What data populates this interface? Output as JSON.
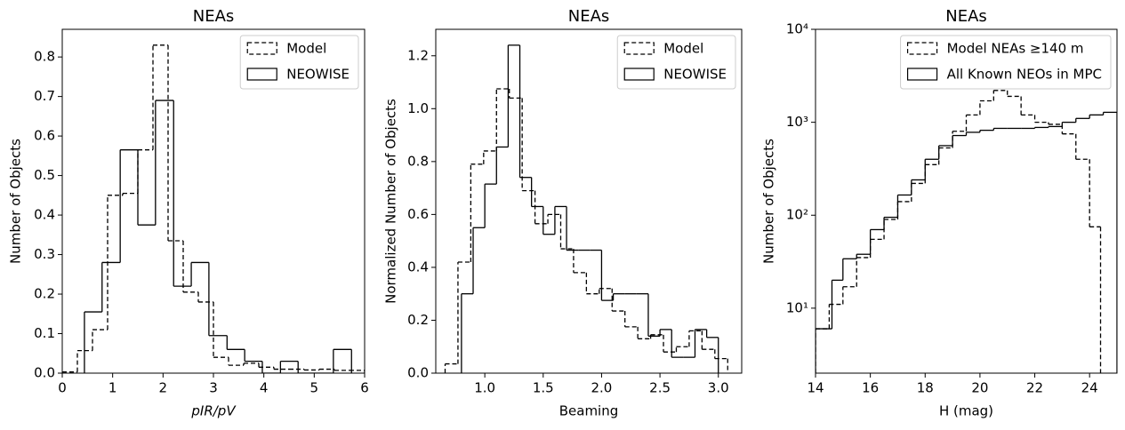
{
  "chart_data": [
    {
      "type": "histogram",
      "title": "NEAs",
      "xlabel": "pIR/pV",
      "ylabel": "Number of Objects",
      "xlim": [
        0,
        6
      ],
      "ylim": [
        0,
        0.87
      ],
      "xticks": [
        0,
        1,
        2,
        3,
        4,
        5,
        6
      ],
      "yticks": [
        {
          "value": 0,
          "label": "0.0"
        },
        0.1,
        0.2,
        0.3,
        0.4,
        0.5,
        0.6,
        0.7,
        0.8
      ],
      "legend": "upper right",
      "series": [
        {
          "name": "Model",
          "style": "dashed",
          "color": "#000000",
          "bins": [
            0,
            0.3,
            0.6,
            0.9,
            1.2,
            1.5,
            1.8,
            2.1,
            2.4,
            2.7,
            3.0,
            3.3,
            3.6,
            3.9,
            4.2,
            4.5,
            4.8,
            5.1,
            5.4,
            5.7,
            6.0
          ],
          "values": [
            0.003,
            0.057,
            0.11,
            0.45,
            0.455,
            0.565,
            0.83,
            0.335,
            0.205,
            0.18,
            0.04,
            0.02,
            0.025,
            0.015,
            0.01,
            0.01,
            0.008,
            0.01,
            0.007,
            0.007
          ]
        },
        {
          "name": "NEOWISE",
          "style": "solid",
          "color": "#000000",
          "bins": [
            0.44,
            0.79,
            1.15,
            1.5,
            1.85,
            2.21,
            2.56,
            2.91,
            3.27,
            3.62,
            3.97,
            4.33,
            4.68,
            5.03,
            5.38,
            5.74
          ],
          "values": [
            0.155,
            0.28,
            0.565,
            0.375,
            0.69,
            0.22,
            0.28,
            0.095,
            0.06,
            0.03,
            0,
            0.03,
            0,
            0,
            0.06
          ]
        }
      ]
    },
    {
      "type": "histogram",
      "title": "NEAs",
      "xlabel": "Beaming",
      "ylabel": "Normalized Number of Objects",
      "xlim": [
        0.58,
        3.2
      ],
      "ylim": [
        0,
        1.3
      ],
      "xticks": [
        {
          "value": 1,
          "label": "1.0"
        },
        1.5,
        {
          "value": 2,
          "label": "2.0"
        },
        2.5,
        {
          "value": 3,
          "label": "3.0"
        }
      ],
      "yticks": [
        {
          "value": 0,
          "label": "0.0"
        },
        0.2,
        0.4,
        0.6,
        0.8,
        {
          "value": 1,
          "label": "1.0"
        },
        1.2
      ],
      "legend": "upper right",
      "series": [
        {
          "name": "Model",
          "style": "dashed",
          "color": "#000000",
          "bins": [
            0.66,
            0.77,
            0.88,
            0.99,
            1.1,
            1.21,
            1.32,
            1.43,
            1.54,
            1.65,
            1.76,
            1.87,
            1.98,
            2.09,
            2.2,
            2.31,
            2.42,
            2.53,
            2.64,
            2.75,
            2.86,
            2.97,
            3.08
          ],
          "values": [
            0.035,
            0.42,
            0.79,
            0.84,
            1.075,
            1.04,
            0.69,
            0.565,
            0.6,
            0.47,
            0.38,
            0.3,
            0.32,
            0.235,
            0.175,
            0.13,
            0.145,
            0.08,
            0.1,
            0.16,
            0.09,
            0.055
          ]
        },
        {
          "name": "NEOWISE",
          "style": "solid",
          "color": "#000000",
          "bins": [
            0.8,
            0.9,
            1.0,
            1.1,
            1.2,
            1.3,
            1.4,
            1.5,
            1.6,
            1.7,
            1.8,
            1.9,
            2.0,
            2.1,
            2.2,
            2.3,
            2.4,
            2.5,
            2.6,
            2.7,
            2.8,
            2.9,
            3.0
          ],
          "values": [
            0.3,
            0.55,
            0.715,
            0.855,
            1.24,
            0.74,
            0.63,
            0.525,
            0.63,
            0.465,
            0.465,
            0.465,
            0.275,
            0.3,
            0.3,
            0.3,
            0.14,
            0.165,
            0.06,
            0.06,
            0.165,
            0.135
          ]
        }
      ]
    },
    {
      "type": "histogram",
      "title": "NEAs",
      "xlabel": "H (mag)",
      "ylabel": "Number of Objects",
      "xlim": [
        14,
        25
      ],
      "ylim": [
        2,
        10000
      ],
      "log_y": true,
      "xticks": [
        14,
        16,
        18,
        20,
        22,
        24
      ],
      "yticks": [
        {
          "value": 10,
          "label": "10¹"
        },
        {
          "value": 100,
          "label": "10²"
        },
        {
          "value": 1000,
          "label": "10³"
        },
        {
          "value": 10000,
          "label": "10⁴"
        }
      ],
      "legend": "upper right",
      "series": [
        {
          "name": "Model NEAs ≥140 m",
          "style": "dashed",
          "color": "#000000",
          "bins": [
            14,
            14.5,
            15,
            15.5,
            16,
            16.5,
            17,
            17.5,
            18,
            18.5,
            19,
            19.5,
            20,
            20.5,
            21,
            21.5,
            22,
            22.5,
            23,
            23.5,
            24,
            24.4
          ],
          "values": [
            6,
            11,
            17,
            35,
            55,
            90,
            140,
            220,
            350,
            530,
            800,
            1200,
            1700,
            2200,
            1900,
            1200,
            1000,
            950,
            750,
            400,
            75
          ]
        },
        {
          "name": "All Known NEOs in MPC",
          "style": "solid",
          "color": "#000000",
          "bins": [
            14,
            14.6,
            15,
            15.5,
            16,
            16.5,
            17,
            17.5,
            18,
            18.5,
            19,
            19.5,
            20,
            20.5,
            21,
            21.5,
            22,
            22.5,
            23,
            23.5,
            24,
            24.5,
            25
          ],
          "values": [
            6,
            20,
            34,
            38,
            70,
            95,
            165,
            240,
            400,
            560,
            720,
            780,
            820,
            860,
            860,
            860,
            880,
            900,
            1000,
            1100,
            1200,
            1280
          ]
        }
      ]
    }
  ]
}
